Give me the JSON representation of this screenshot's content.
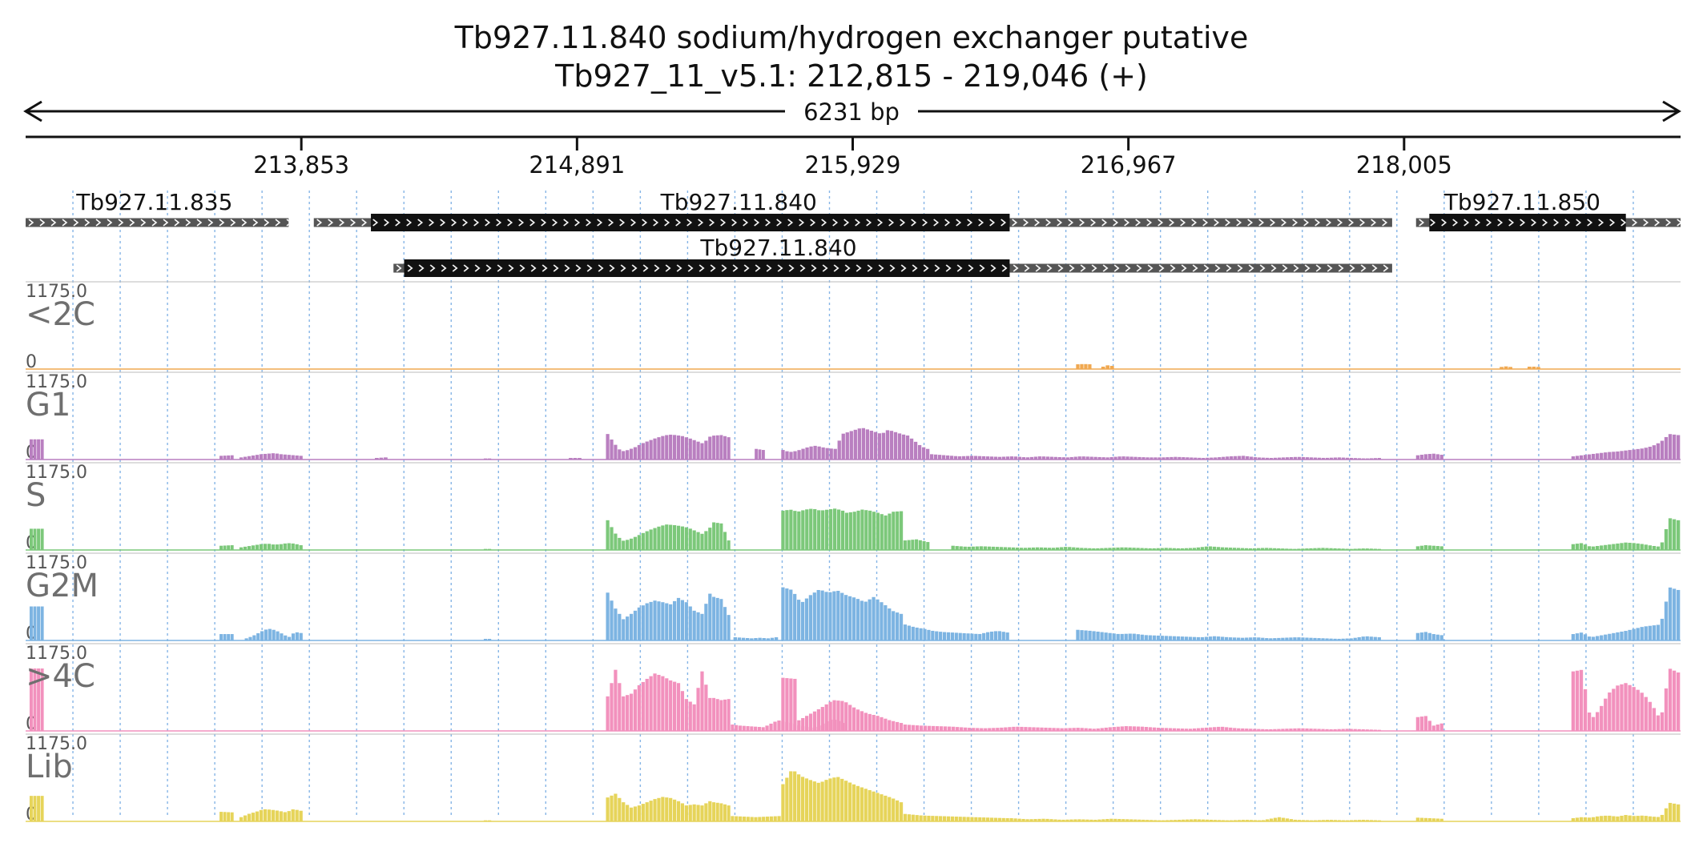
{
  "header": {
    "title": "Tb927.11.840  sodium/hydrogen exchanger  putative",
    "locus": "Tb927_11_v5.1: 212,815 - 219,046 (+)",
    "span_label": "6231 bp"
  },
  "chart_data": {
    "type": "area",
    "region": {
      "start": 212815,
      "end": 219046
    },
    "ticks": [
      {
        "pos": 213853,
        "label": "213,853"
      },
      {
        "pos": 214891,
        "label": "214,891"
      },
      {
        "pos": 215929,
        "label": "215,929"
      },
      {
        "pos": 216967,
        "label": "216,967"
      },
      {
        "pos": 218005,
        "label": "218,005"
      }
    ],
    "genes": [
      {
        "name": "Tb927.11.835",
        "row": 0,
        "utr": [
          212815,
          213805
        ],
        "cds": [],
        "label_pos": 213300
      },
      {
        "name": "Tb927.11.840",
        "row": 0,
        "utr": [
          213900,
          217960
        ],
        "cds": [
          214115,
          216520
        ],
        "label_pos": 215500
      },
      {
        "name": "Tb927.11.850",
        "row": 0,
        "utr": [
          218050,
          219046
        ],
        "cds": [
          218100,
          218840
        ],
        "label_pos": 218450
      },
      {
        "name": "Tb927.11.840",
        "row": 1,
        "utr": [
          214200,
          217960
        ],
        "cds": [
          214240,
          216520
        ],
        "label_pos": 215650
      }
    ],
    "track_scale": {
      "max_label": "1175.0",
      "min_label": "0",
      "max": 1175
    },
    "tracks": [
      {
        "name": "<2C",
        "color": "#f0a850",
        "segments": [
          {
            "start": 216770,
            "end": 216830,
            "values": [
              90,
              95,
              90
            ]
          },
          {
            "start": 216865,
            "end": 216915,
            "values": [
              45,
              70,
              60
            ]
          },
          {
            "start": 218365,
            "end": 218415,
            "values": [
              40,
              50,
              40
            ]
          },
          {
            "start": 218470,
            "end": 218520,
            "values": [
              45,
              45,
              40
            ]
          }
        ]
      },
      {
        "name": "G1",
        "color": "#b97fc0",
        "segments": [
          {
            "start": 212830,
            "end": 212885,
            "values": [
              380,
              380
            ]
          },
          {
            "start": 213545,
            "end": 213600,
            "values": [
              70,
              80
            ]
          },
          {
            "start": 213620,
            "end": 213860,
            "values": [
              40,
              60,
              80,
              100,
              110,
              120,
              100,
              90,
              80,
              70
            ]
          },
          {
            "start": 214130,
            "end": 214180,
            "values": [
              30,
              40
            ]
          },
          {
            "start": 214540,
            "end": 214570,
            "values": [
              20
            ]
          },
          {
            "start": 214860,
            "end": 214910,
            "values": [
              30,
              30
            ]
          },
          {
            "start": 215000,
            "end": 215400,
            "values": [
              480,
              300,
              150,
              180,
              230,
              300,
              350,
              400,
              440,
              470,
              460,
              440,
              400,
              350,
              300,
              430
            ]
          },
          {
            "start": 215400,
            "end": 215470,
            "values": [
              450,
              460,
              420
            ]
          },
          {
            "start": 215560,
            "end": 215600,
            "values": [
              200,
              180
            ]
          },
          {
            "start": 215660,
            "end": 216220,
            "values": [
              180,
              140,
              160,
              200,
              240,
              260,
              230,
              210,
              200,
              480,
              520,
              560,
              600,
              560,
              520,
              480,
              560,
              520,
              480,
              450,
              350,
              250,
              200
            ]
          },
          {
            "start": 216220,
            "end": 217920,
            "values": [
              100,
              80,
              60,
              70,
              60,
              50,
              60,
              40,
              60,
              50,
              40,
              60,
              50,
              40,
              60,
              50,
              40,
              40,
              50,
              40,
              30,
              40,
              60,
              70,
              40,
              30,
              40,
              50,
              40,
              30,
              40,
              30,
              20,
              30
            ]
          },
          {
            "start": 218050,
            "end": 218155,
            "values": [
              80,
              100,
              110,
              90
            ]
          },
          {
            "start": 218635,
            "end": 219046,
            "values": [
              60,
              80,
              100,
              120,
              140,
              150,
              170,
              190,
              210,
              250,
              330,
              480,
              460
            ]
          }
        ]
      },
      {
        "name": "S",
        "color": "#7cc87a",
        "segments": [
          {
            "start": 212830,
            "end": 212885,
            "values": [
              400,
              400
            ]
          },
          {
            "start": 213545,
            "end": 213600,
            "values": [
              80,
              90
            ]
          },
          {
            "start": 213620,
            "end": 213860,
            "values": [
              50,
              70,
              90,
              110,
              120,
              100,
              110,
              130,
              120,
              90
            ]
          },
          {
            "start": 214540,
            "end": 214570,
            "values": [
              20
            ]
          },
          {
            "start": 215000,
            "end": 215400,
            "values": [
              560,
              320,
              170,
              200,
              260,
              330,
              390,
              440,
              480,
              470,
              450,
              420,
              360,
              300,
              420
            ]
          },
          {
            "start": 215400,
            "end": 215470,
            "values": [
              520,
              500,
              180
            ]
          },
          {
            "start": 215660,
            "end": 215900,
            "values": [
              740,
              760,
              720,
              760,
              780,
              740,
              760,
              780,
              740
            ]
          },
          {
            "start": 215900,
            "end": 216120,
            "values": [
              700,
              720,
              760,
              740,
              700,
              650,
              720,
              730
            ]
          },
          {
            "start": 216120,
            "end": 216220,
            "values": [
              180,
              200,
              150
            ]
          },
          {
            "start": 216300,
            "end": 217920,
            "values": [
              80,
              60,
              70,
              60,
              50,
              40,
              50,
              40,
              60,
              40,
              30,
              40,
              50,
              40,
              30,
              40,
              30,
              40,
              70,
              50,
              40,
              30,
              40,
              30,
              20,
              30,
              40,
              30,
              20,
              30,
              20
            ]
          },
          {
            "start": 218050,
            "end": 218155,
            "values": [
              70,
              90,
              80,
              70
            ]
          },
          {
            "start": 218635,
            "end": 219046,
            "values": [
              110,
              130,
              60,
              80,
              100,
              120,
              140,
              130,
              110,
              80,
              60,
              600,
              560
            ]
          }
        ]
      },
      {
        "name": "G2M",
        "color": "#7db4e2",
        "segments": [
          {
            "start": 212830,
            "end": 212885,
            "values": [
              640,
              640
            ]
          },
          {
            "start": 213545,
            "end": 213600,
            "values": [
              120,
              120
            ]
          },
          {
            "start": 213640,
            "end": 213860,
            "values": [
              40,
              80,
              140,
              200,
              220,
              180,
              120,
              60,
              160,
              140
            ]
          },
          {
            "start": 214540,
            "end": 214570,
            "values": [
              30
            ]
          },
          {
            "start": 215000,
            "end": 215400,
            "values": [
              900,
              600,
              400,
              500,
              620,
              700,
              750,
              720,
              680,
              800,
              720,
              560,
              500,
              880
            ]
          },
          {
            "start": 215400,
            "end": 215470,
            "values": [
              820,
              780,
              480
            ]
          },
          {
            "start": 215480,
            "end": 215650,
            "values": [
              60,
              50,
              40,
              50,
              40,
              60
            ]
          },
          {
            "start": 215660,
            "end": 216120,
            "values": [
              1000,
              950,
              700,
              850,
              960,
              900,
              940,
              850,
              800,
              720,
              820,
              700,
              560,
              500
            ]
          },
          {
            "start": 216120,
            "end": 216520,
            "values": [
              300,
              250,
              220,
              180,
              160,
              150,
              140,
              130,
              120,
              160,
              180,
              150
            ]
          },
          {
            "start": 216770,
            "end": 217920,
            "values": [
              200,
              180,
              150,
              120,
              130,
              100,
              90,
              80,
              70,
              60,
              80,
              60,
              50,
              60,
              40,
              50,
              60,
              50,
              40,
              30,
              40,
              80,
              60
            ]
          },
          {
            "start": 218050,
            "end": 218155,
            "values": [
              140,
              160,
              120,
              100
            ]
          },
          {
            "start": 218635,
            "end": 219046,
            "values": [
              120,
              150,
              60,
              90,
              120,
              150,
              180,
              220,
              260,
              280,
              300,
              1000,
              950
            ]
          }
        ]
      },
      {
        "name": ">4C",
        "color": "#f291bd",
        "segments": [
          {
            "start": 212830,
            "end": 212885,
            "values": [
              1175,
              1175
            ]
          },
          {
            "start": 215000,
            "end": 215400,
            "values": [
              650,
              1150,
              650,
              700,
              860,
              980,
              1080,
              1030,
              950,
              900,
              600,
              500,
              1120,
              620
            ]
          },
          {
            "start": 215400,
            "end": 215470,
            "values": [
              620,
              580,
              600
            ]
          },
          {
            "start": 215470,
            "end": 215600,
            "values": [
              120,
              100,
              90,
              80,
              70
            ]
          },
          {
            "start": 215600,
            "end": 215900,
            "values": [
              100,
              150,
              200,
              180,
              160,
              140,
              100,
              80,
              60,
              80,
              120,
              180,
              220,
              200,
              150
            ]
          },
          {
            "start": 215660,
            "end": 215720,
            "values": [
              1000,
              980
            ]
          },
          {
            "start": 215720,
            "end": 216120,
            "values": [
              200,
              320,
              440,
              580,
              560,
              420,
              330,
              280,
              200,
              150
            ]
          },
          {
            "start": 216120,
            "end": 217920,
            "values": [
              120,
              100,
              90,
              80,
              60,
              50,
              60,
              80,
              70,
              60,
              50,
              60,
              40,
              70,
              90,
              80,
              60,
              50,
              40,
              60,
              80,
              50,
              40,
              30,
              40,
              50,
              40,
              30,
              40,
              30,
              20
            ]
          },
          {
            "start": 218050,
            "end": 218155,
            "values": [
              260,
              280,
              100,
              140
            ]
          },
          {
            "start": 218635,
            "end": 219046,
            "values": [
              1120,
              1150,
              200,
              400,
              700,
              850,
              900,
              820,
              700,
              500,
              200,
              1175,
              1100
            ]
          }
        ]
      },
      {
        "name": "Lib",
        "color": "#e6d45a",
        "segments": [
          {
            "start": 212830,
            "end": 212885,
            "values": [
              480,
              480
            ]
          },
          {
            "start": 213545,
            "end": 213600,
            "values": [
              180,
              170
            ]
          },
          {
            "start": 213620,
            "end": 213860,
            "values": [
              80,
              140,
              180,
              230,
              220,
              200,
              170,
              230,
              200
            ]
          },
          {
            "start": 214540,
            "end": 214570,
            "values": [
              20
            ]
          },
          {
            "start": 215000,
            "end": 215400,
            "values": [
              450,
              520,
              360,
              260,
              300,
              360,
              420,
              460,
              440,
              380,
              300,
              320,
              300,
              380
            ]
          },
          {
            "start": 215400,
            "end": 215470,
            "values": [
              360,
              340,
              300
            ]
          },
          {
            "start": 215470,
            "end": 215660,
            "values": [
              100,
              90,
              80,
              90,
              100
            ]
          },
          {
            "start": 215660,
            "end": 216120,
            "values": [
              700,
              980,
              850,
              780,
              720,
              800,
              840,
              760,
              680,
              620,
              560,
              500,
              440,
              360
            ]
          },
          {
            "start": 216120,
            "end": 216520,
            "values": [
              140,
              110,
              100,
              90,
              80,
              70,
              60
            ]
          },
          {
            "start": 216520,
            "end": 217920,
            "values": [
              60,
              40,
              50,
              30,
              40,
              30,
              50,
              40,
              30,
              20,
              30,
              40,
              30,
              20,
              30,
              20,
              80,
              30,
              20,
              30,
              20,
              30,
              20
            ]
          },
          {
            "start": 218050,
            "end": 218155,
            "values": [
              70,
              60,
              50
            ]
          },
          {
            "start": 218635,
            "end": 219046,
            "values": [
              60,
              80,
              70,
              100,
              110,
              90,
              120,
              100,
              110,
              90,
              80,
              350,
              320
            ]
          }
        ]
      }
    ]
  }
}
